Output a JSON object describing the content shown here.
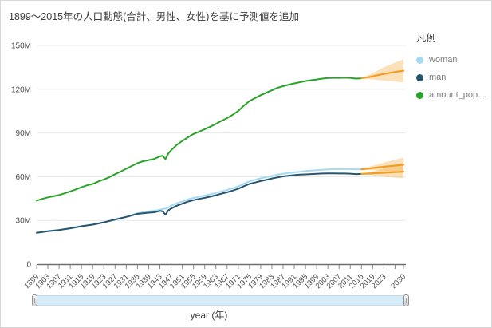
{
  "card": {
    "title": "1899〜2015年の人口動態(合計、男性、女性)を基に予測値を追加"
  },
  "legend": {
    "title": "凡例",
    "items": [
      {
        "label": "woman",
        "color": "#a6d9f2"
      },
      {
        "label": "man",
        "color": "#26566f"
      },
      {
        "label": "amount_popul...",
        "color": "#29a329"
      }
    ]
  },
  "x_axis_title": "year (年)",
  "colors": {
    "forecast_line": "#f39c1d",
    "forecast_band": "rgba(243,156,29,0.30)",
    "gridline": "#e8e8e8",
    "axis_line": "#707070",
    "tick_text": "#4d4d4d"
  },
  "chart_data": {
    "type": "line",
    "title": "1899〜2015年の人口動態(合計、男性、女性)を基に予測値を追加",
    "xlabel": "year (年)",
    "ylabel": "",
    "unit": "millions of people",
    "x_range": [
      1899,
      2030
    ],
    "ylim": [
      0,
      150000000
    ],
    "grid": "horizontal",
    "legend_position": "right",
    "y_ticks": [
      0,
      30,
      60,
      90,
      120,
      150
    ],
    "y_tick_labels": [
      "0",
      "30M",
      "60M",
      "90M",
      "120M",
      "150M"
    ],
    "x_ticks": [
      1899,
      1903,
      1907,
      1911,
      1915,
      1919,
      1923,
      1927,
      1931,
      1935,
      1939,
      1943,
      1947,
      1951,
      1955,
      1959,
      1963,
      1967,
      1971,
      1975,
      1979,
      1983,
      1987,
      1991,
      1995,
      1999,
      2003,
      2007,
      2011,
      2015,
      2019,
      2023,
      2027,
      2030
    ],
    "x_tick_labels": [
      "1899",
      "1903",
      "1907",
      "1911",
      "1915",
      "1919",
      "1923",
      "1927",
      "1931",
      "1935",
      "1939",
      "1943",
      "1947",
      "1951",
      "1955",
      "1959",
      "1963",
      "1967",
      "1971",
      "1975",
      "1979",
      "1983",
      "1987",
      "1991",
      "1995",
      "1999",
      "2003",
      "2007",
      "2011",
      "2015",
      "2019",
      "2023",
      "",
      "2030"
    ],
    "series": [
      {
        "name": "woman",
        "color": "#a6d9f2",
        "width": 2,
        "points": [
          [
            1899,
            21.7
          ],
          [
            1903,
            22.7
          ],
          [
            1907,
            23.5
          ],
          [
            1911,
            24.7
          ],
          [
            1915,
            26.1
          ],
          [
            1919,
            27.2
          ],
          [
            1923,
            28.8
          ],
          [
            1927,
            30.7
          ],
          [
            1931,
            32.5
          ],
          [
            1935,
            35.0
          ],
          [
            1939,
            36.2
          ],
          [
            1941,
            36.6
          ],
          [
            1943,
            37.3
          ],
          [
            1944,
            37.9
          ],
          [
            1945,
            38.1
          ],
          [
            1946,
            38.9
          ],
          [
            1947,
            40.0
          ],
          [
            1949,
            41.7
          ],
          [
            1951,
            43.0
          ],
          [
            1953,
            44.4
          ],
          [
            1955,
            45.4
          ],
          [
            1957,
            46.3
          ],
          [
            1959,
            47.1
          ],
          [
            1961,
            47.9
          ],
          [
            1963,
            48.9
          ],
          [
            1965,
            49.9
          ],
          [
            1967,
            50.9
          ],
          [
            1969,
            52.0
          ],
          [
            1971,
            53.4
          ],
          [
            1973,
            55.2
          ],
          [
            1975,
            56.8
          ],
          [
            1977,
            57.9
          ],
          [
            1979,
            58.9
          ],
          [
            1981,
            59.7
          ],
          [
            1983,
            60.5
          ],
          [
            1985,
            61.4
          ],
          [
            1987,
            62.0
          ],
          [
            1989,
            62.5
          ],
          [
            1991,
            63.0
          ],
          [
            1993,
            63.4
          ],
          [
            1995,
            63.9
          ],
          [
            1997,
            64.2
          ],
          [
            1999,
            64.5
          ],
          [
            2001,
            64.8
          ],
          [
            2003,
            65.0
          ],
          [
            2005,
            65.2
          ],
          [
            2007,
            65.2
          ],
          [
            2009,
            65.3
          ],
          [
            2011,
            65.2
          ],
          [
            2013,
            65.0
          ],
          [
            2015,
            65.1
          ]
        ]
      },
      {
        "name": "man",
        "color": "#26566f",
        "width": 2,
        "points": [
          [
            1899,
            21.5
          ],
          [
            1903,
            22.6
          ],
          [
            1907,
            23.4
          ],
          [
            1911,
            24.6
          ],
          [
            1915,
            26.0
          ],
          [
            1919,
            27.1
          ],
          [
            1923,
            28.7
          ],
          [
            1927,
            30.6
          ],
          [
            1931,
            32.4
          ],
          [
            1935,
            34.5
          ],
          [
            1939,
            35.3
          ],
          [
            1941,
            35.6
          ],
          [
            1943,
            36.5
          ],
          [
            1944,
            36.3
          ],
          [
            1945,
            33.9
          ],
          [
            1946,
            36.9
          ],
          [
            1947,
            38.1
          ],
          [
            1949,
            40.1
          ],
          [
            1951,
            41.5
          ],
          [
            1953,
            42.9
          ],
          [
            1955,
            43.9
          ],
          [
            1957,
            44.8
          ],
          [
            1959,
            45.5
          ],
          [
            1961,
            46.3
          ],
          [
            1963,
            47.3
          ],
          [
            1965,
            48.4
          ],
          [
            1967,
            49.3
          ],
          [
            1969,
            50.5
          ],
          [
            1971,
            51.8
          ],
          [
            1973,
            53.5
          ],
          [
            1975,
            55.1
          ],
          [
            1977,
            56.0
          ],
          [
            1979,
            57.0
          ],
          [
            1981,
            57.8
          ],
          [
            1983,
            58.8
          ],
          [
            1985,
            59.5
          ],
          [
            1987,
            60.2
          ],
          [
            1989,
            60.7
          ],
          [
            1991,
            61.1
          ],
          [
            1993,
            61.4
          ],
          [
            1995,
            61.6
          ],
          [
            1997,
            61.8
          ],
          [
            1999,
            62.0
          ],
          [
            2001,
            62.2
          ],
          [
            2003,
            62.3
          ],
          [
            2005,
            62.3
          ],
          [
            2007,
            62.2
          ],
          [
            2009,
            62.2
          ],
          [
            2011,
            62.1
          ],
          [
            2013,
            61.8
          ],
          [
            2015,
            61.9
          ]
        ]
      },
      {
        "name": "amount_population",
        "color": "#29a329",
        "width": 2,
        "points": [
          [
            1899,
            43.6
          ],
          [
            1901,
            44.8
          ],
          [
            1903,
            45.8
          ],
          [
            1905,
            46.6
          ],
          [
            1907,
            47.4
          ],
          [
            1909,
            48.6
          ],
          [
            1911,
            49.9
          ],
          [
            1913,
            51.3
          ],
          [
            1915,
            52.8
          ],
          [
            1917,
            54.1
          ],
          [
            1919,
            55.0
          ],
          [
            1921,
            56.7
          ],
          [
            1923,
            58.1
          ],
          [
            1925,
            59.7
          ],
          [
            1927,
            61.7
          ],
          [
            1929,
            63.5
          ],
          [
            1931,
            65.5
          ],
          [
            1933,
            67.4
          ],
          [
            1935,
            69.3
          ],
          [
            1937,
            70.6
          ],
          [
            1939,
            71.4
          ],
          [
            1941,
            72.2
          ],
          [
            1943,
            73.9
          ],
          [
            1944,
            74.4
          ],
          [
            1945,
            72.1
          ],
          [
            1946,
            75.8
          ],
          [
            1947,
            78.1
          ],
          [
            1949,
            81.8
          ],
          [
            1951,
            84.5
          ],
          [
            1953,
            87.0
          ],
          [
            1955,
            89.3
          ],
          [
            1957,
            90.9
          ],
          [
            1959,
            92.6
          ],
          [
            1961,
            94.3
          ],
          [
            1963,
            96.2
          ],
          [
            1965,
            98.3
          ],
          [
            1967,
            100.2
          ],
          [
            1969,
            102.5
          ],
          [
            1971,
            105.1
          ],
          [
            1973,
            108.7
          ],
          [
            1975,
            111.9
          ],
          [
            1977,
            113.9
          ],
          [
            1979,
            115.9
          ],
          [
            1981,
            117.6
          ],
          [
            1983,
            119.3
          ],
          [
            1985,
            121.0
          ],
          [
            1987,
            122.1
          ],
          [
            1989,
            123.1
          ],
          [
            1991,
            124.0
          ],
          [
            1993,
            124.8
          ],
          [
            1995,
            125.6
          ],
          [
            1997,
            126.2
          ],
          [
            1999,
            126.7
          ],
          [
            2001,
            127.3
          ],
          [
            2003,
            127.7
          ],
          [
            2005,
            127.8
          ],
          [
            2007,
            127.8
          ],
          [
            2009,
            127.9
          ],
          [
            2011,
            127.8
          ],
          [
            2013,
            127.3
          ],
          [
            2015,
            127.5
          ]
        ]
      }
    ],
    "forecasts": [
      {
        "series": "amount_population",
        "points": [
          [
            2015,
            127.5,
            127.5,
            127.5
          ],
          [
            2018,
            128.5,
            126.9,
            130.1
          ],
          [
            2021,
            129.7,
            126.3,
            133.1
          ],
          [
            2024,
            130.8,
            125.7,
            136.0
          ],
          [
            2027,
            131.8,
            125.2,
            138.4
          ],
          [
            2030,
            132.7,
            124.7,
            140.6
          ]
        ]
      },
      {
        "series": "woman",
        "points": [
          [
            2015,
            65.1,
            65.1,
            65.1
          ],
          [
            2018,
            65.7,
            64.6,
            66.9
          ],
          [
            2021,
            66.4,
            64.1,
            68.6
          ],
          [
            2024,
            67.0,
            63.7,
            70.2
          ],
          [
            2027,
            67.6,
            63.3,
            71.7
          ],
          [
            2030,
            68.2,
            62.9,
            73.1
          ]
        ]
      },
      {
        "series": "man",
        "points": [
          [
            2015,
            61.9,
            61.9,
            61.9
          ],
          [
            2018,
            62.2,
            61.1,
            63.2
          ],
          [
            2021,
            62.5,
            60.5,
            64.5
          ],
          [
            2024,
            62.8,
            59.9,
            65.8
          ],
          [
            2027,
            63.1,
            59.4,
            67.0
          ],
          [
            2030,
            63.4,
            58.9,
            68.1
          ]
        ]
      }
    ]
  }
}
